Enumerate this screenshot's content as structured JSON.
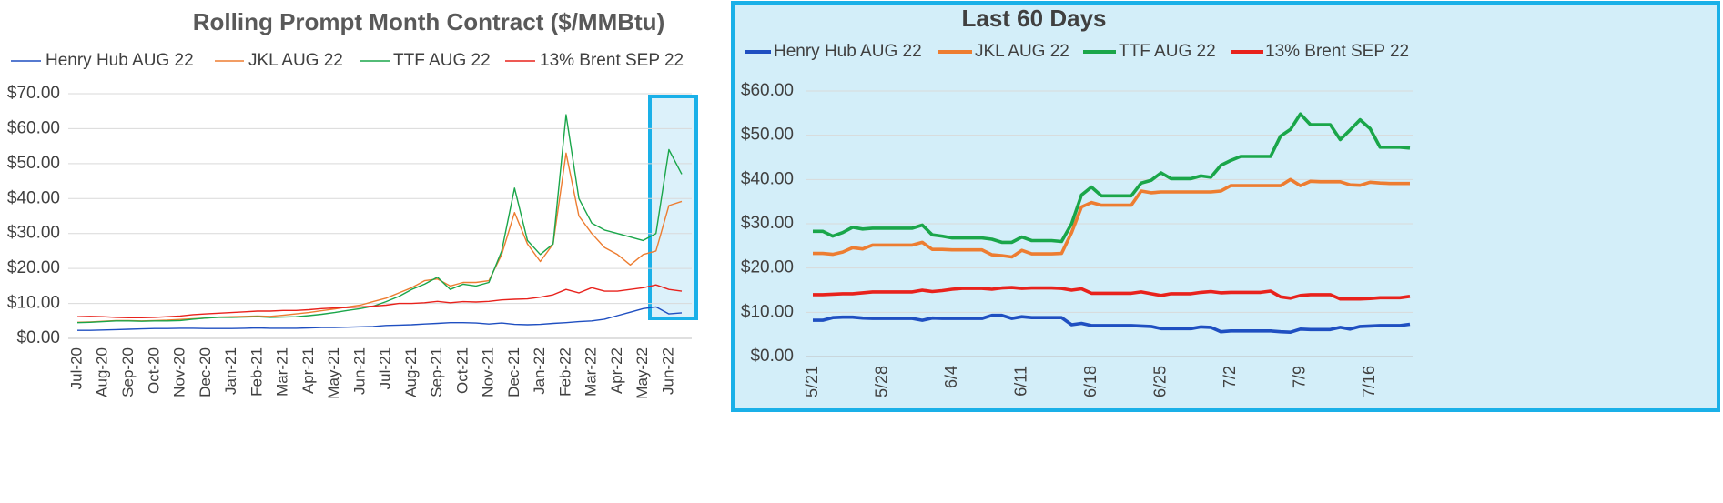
{
  "chart_data": [
    {
      "type": "line",
      "title": "Rolling Prompt Month Contract ($/MMBtu)",
      "categories": [
        "Jul-20",
        null,
        "Aug-20",
        null,
        "Sep-20",
        null,
        "Oct-20",
        null,
        "Nov-20",
        null,
        "Dec-20",
        null,
        "Jan-21",
        null,
        "Feb-21",
        null,
        "Mar-21",
        null,
        "Apr-21",
        null,
        "May-21",
        null,
        "Jun-21",
        null,
        "Jul-21",
        null,
        "Aug-21",
        null,
        "Sep-21",
        null,
        "Oct-21",
        null,
        "Nov-21",
        null,
        "Dec-21",
        null,
        "Jan-22",
        null,
        "Feb-22",
        null,
        "Mar-22",
        null,
        "Apr-22",
        null,
        "May-22",
        null,
        "Jun-22",
        null
      ],
      "series": [
        {
          "name": "Henry Hub AUG 22",
          "color": "#1f4fc1",
          "values": [
            2.3,
            2.3,
            2.4,
            2.5,
            2.6,
            2.7,
            2.8,
            2.8,
            2.9,
            2.9,
            2.8,
            2.8,
            2.8,
            2.9,
            3,
            2.9,
            2.9,
            2.9,
            3,
            3.1,
            3.1,
            3.2,
            3.3,
            3.4,
            3.7,
            3.8,
            3.9,
            4.1,
            4.3,
            4.5,
            4.5,
            4.4,
            4.1,
            4.4,
            4,
            3.9,
            4,
            4.3,
            4.5,
            4.8,
            5,
            5.5,
            6.5,
            7.5,
            8.5,
            9,
            7,
            7.3
          ]
        },
        {
          "name": "JKL AUG 22",
          "color": "#ed7d31",
          "values": [
            4.6,
            4.7,
            4.9,
            5.1,
            5.1,
            5,
            5.1,
            5.2,
            5.4,
            5.6,
            5.8,
            6.1,
            6.2,
            6.3,
            6.4,
            6.3,
            6.6,
            7,
            7.4,
            7.9,
            8.4,
            9,
            9.5,
            10.5,
            11.5,
            13,
            14.5,
            16.5,
            17,
            15,
            16,
            16,
            16.5,
            24,
            36,
            27,
            22,
            27,
            53,
            35,
            30,
            26,
            24,
            21,
            24,
            25,
            38,
            39.2
          ]
        },
        {
          "name": "TTF AUG 22",
          "color": "#1aa64a",
          "values": [
            4.5,
            4.6,
            4.8,
            5,
            5,
            4.9,
            5,
            5,
            5.1,
            5.5,
            5.8,
            6,
            6,
            6.1,
            6.2,
            6,
            6.1,
            6.2,
            6.5,
            6.9,
            7.4,
            8,
            8.5,
            9.2,
            10.5,
            12,
            14,
            15.5,
            17.5,
            14,
            15.5,
            15,
            16,
            25,
            43,
            28,
            24,
            27,
            64,
            40,
            33,
            31,
            30,
            29,
            28,
            30,
            54,
            47
          ]
        },
        {
          "name": "13% Brent SEP 22",
          "color": "#e8221c",
          "values": [
            6.2,
            6.3,
            6.2,
            6,
            5.9,
            5.9,
            6,
            6.2,
            6.4,
            6.8,
            7,
            7.2,
            7.4,
            7.6,
            7.8,
            7.8,
            8,
            8,
            8.2,
            8.5,
            8.7,
            8.8,
            9,
            9.2,
            9.5,
            10,
            10,
            10.2,
            10.6,
            10.2,
            10.5,
            10.4,
            10.6,
            11,
            11.2,
            11.3,
            11.8,
            12.5,
            14,
            13,
            14.5,
            13.5,
            13.5,
            14,
            14.5,
            15.3,
            14,
            13.5
          ]
        }
      ],
      "ylim": [
        0,
        70
      ],
      "yticks": [
        {
          "value": 0,
          "label": "$0.00"
        },
        {
          "value": 10,
          "label": "$10.00"
        },
        {
          "value": 20,
          "label": "$20.00"
        },
        {
          "value": 30,
          "label": "$30.00"
        },
        {
          "value": 40,
          "label": "$40.00"
        },
        {
          "value": 50,
          "label": "$50.00"
        },
        {
          "value": 60,
          "label": "$60.00"
        },
        {
          "value": 70,
          "label": "$70.00"
        }
      ],
      "grid": true,
      "legend": "top"
    },
    {
      "type": "line",
      "title": "Last 60 Days",
      "categories": [
        "5/21",
        null,
        null,
        null,
        null,
        null,
        null,
        "5/28",
        null,
        null,
        null,
        null,
        null,
        null,
        "6/4",
        null,
        null,
        null,
        null,
        null,
        null,
        "6/11",
        null,
        null,
        null,
        null,
        null,
        null,
        "6/18",
        null,
        null,
        null,
        null,
        null,
        null,
        "6/25",
        null,
        null,
        null,
        null,
        null,
        null,
        "7/2",
        null,
        null,
        null,
        null,
        null,
        null,
        "7/9",
        null,
        null,
        null,
        null,
        null,
        null,
        "7/16",
        null,
        null,
        null,
        null
      ],
      "series": [
        {
          "name": "Henry Hub AUG 22",
          "color": "#1f4fc1",
          "values": [
            8.2,
            8.2,
            8.8,
            8.9,
            8.9,
            8.7,
            8.6,
            8.6,
            8.6,
            8.6,
            8.6,
            8.2,
            8.7,
            8.6,
            8.6,
            8.6,
            8.6,
            8.6,
            9.3,
            9.3,
            8.6,
            9,
            8.8,
            8.8,
            8.8,
            8.8,
            7.2,
            7.5,
            7,
            7,
            7,
            7,
            7,
            6.9,
            6.8,
            6.3,
            6.3,
            6.3,
            6.3,
            6.7,
            6.6,
            5.6,
            5.8,
            5.8,
            5.8,
            5.8,
            5.8,
            5.6,
            5.5,
            6.2,
            6.1,
            6.1,
            6.1,
            6.6,
            6.2,
            6.8,
            6.9,
            7,
            7,
            7,
            7.3
          ]
        },
        {
          "name": "JKL AUG 22",
          "color": "#ed7d31",
          "values": [
            23.3,
            23.3,
            23.1,
            23.6,
            24.6,
            24.3,
            25.2,
            25.2,
            25.2,
            25.2,
            25.2,
            25.8,
            24.2,
            24.2,
            24.1,
            24.1,
            24.1,
            24.1,
            23,
            22.8,
            22.5,
            24,
            23.2,
            23.2,
            23.2,
            23.3,
            28,
            33.8,
            34.8,
            34.2,
            34.2,
            34.2,
            34.2,
            37.4,
            37,
            37.2,
            37.2,
            37.2,
            37.2,
            37.2,
            37.2,
            37.4,
            38.6,
            38.6,
            38.6,
            38.6,
            38.6,
            38.6,
            40,
            38.6,
            39.6,
            39.5,
            39.5,
            39.5,
            38.8,
            38.7,
            39.4,
            39.2,
            39.1,
            39.1,
            39.1
          ]
        },
        {
          "name": "TTF AUG 22",
          "color": "#1aa64a",
          "values": [
            28.3,
            28.3,
            27.2,
            28,
            29.2,
            28.8,
            29,
            29,
            29,
            29,
            29,
            29.7,
            27.5,
            27.2,
            26.8,
            26.8,
            26.8,
            26.8,
            26.5,
            25.8,
            25.8,
            27,
            26.2,
            26.2,
            26.2,
            26,
            30,
            36.5,
            38.3,
            36.3,
            36.3,
            36.3,
            36.3,
            39.2,
            39.8,
            41.5,
            40.2,
            40.2,
            40.2,
            40.8,
            40.5,
            43.2,
            44.3,
            45.2,
            45.2,
            45.2,
            45.2,
            49.8,
            51.3,
            54.8,
            52.4,
            52.4,
            52.4,
            49,
            51.2,
            53.5,
            51.5,
            47.3,
            47.3,
            47.3,
            47.1
          ]
        },
        {
          "name": "13% Brent SEP 22",
          "color": "#e8221c",
          "values": [
            14,
            14,
            14.1,
            14.2,
            14.2,
            14.4,
            14.6,
            14.6,
            14.6,
            14.6,
            14.6,
            15,
            14.7,
            14.9,
            15.2,
            15.4,
            15.4,
            15.4,
            15.2,
            15.5,
            15.6,
            15.4,
            15.5,
            15.5,
            15.5,
            15.4,
            15,
            15.3,
            14.3,
            14.3,
            14.3,
            14.3,
            14.3,
            14.6,
            14.2,
            13.8,
            14.2,
            14.2,
            14.2,
            14.5,
            14.7,
            14.4,
            14.5,
            14.5,
            14.5,
            14.5,
            14.8,
            13.5,
            13.2,
            13.8,
            14,
            14,
            14,
            13,
            13,
            13,
            13.1,
            13.3,
            13.3,
            13.3,
            13.6
          ]
        }
      ],
      "ylim": [
        0,
        60
      ],
      "yticks": [
        {
          "value": 0,
          "label": "$0.00"
        },
        {
          "value": 10,
          "label": "$10.00"
        },
        {
          "value": 20,
          "label": "$20.00"
        },
        {
          "value": 30,
          "label": "$30.00"
        },
        {
          "value": 40,
          "label": "$40.00"
        },
        {
          "value": 50,
          "label": "$50.00"
        },
        {
          "value": 60,
          "label": "$60.00"
        }
      ],
      "grid": true,
      "legend": "top"
    }
  ]
}
